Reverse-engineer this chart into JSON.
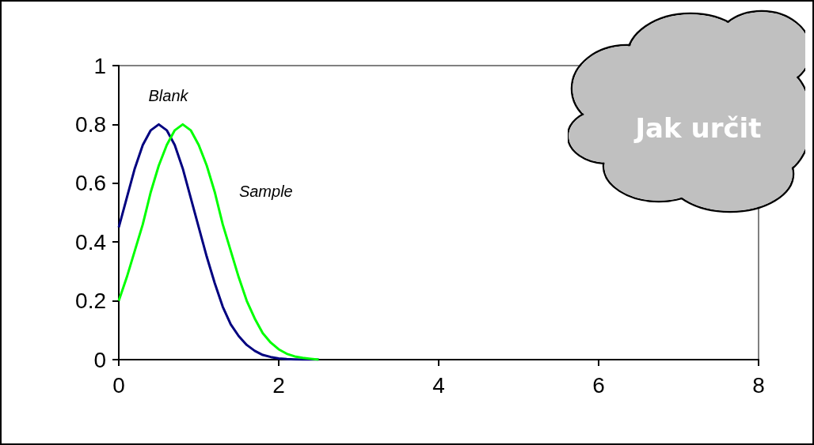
{
  "chart_data": {
    "type": "line",
    "marker": "none",
    "x": [
      0,
      0.1,
      0.2,
      0.3,
      0.4,
      0.5,
      0.6,
      0.7,
      0.8,
      0.9,
      1,
      1.1,
      1.2,
      1.3,
      1.4,
      1.5,
      1.6,
      1.7,
      1.8,
      1.9,
      2,
      2.1,
      2.2,
      2.3,
      2.4,
      2.5
    ],
    "series": [
      {
        "name": "Blank",
        "color": "#000080",
        "values": [
          0.45,
          0.55,
          0.65,
          0.73,
          0.78,
          0.8,
          0.78,
          0.73,
          0.65,
          0.55,
          0.45,
          0.35,
          0.26,
          0.18,
          0.12,
          0.08,
          0.05,
          0.03,
          0.016,
          0.009,
          0.004,
          0.002,
          0.001,
          0,
          0,
          0
        ]
      },
      {
        "name": "Sample",
        "color": "#00ff00",
        "values": [
          0.2,
          0.28,
          0.37,
          0.46,
          0.57,
          0.66,
          0.73,
          0.78,
          0.8,
          0.78,
          0.73,
          0.66,
          0.57,
          0.46,
          0.37,
          0.28,
          0.2,
          0.14,
          0.09,
          0.058,
          0.035,
          0.02,
          0.011,
          0.006,
          0.003,
          0
        ]
      }
    ],
    "xlim": [
      0,
      8
    ],
    "xticks": [
      0,
      2,
      4,
      6,
      8
    ],
    "ylim": [
      0,
      1
    ],
    "yticks": [
      0,
      0.2,
      0.4,
      0.6,
      0.8,
      1
    ],
    "annotations": [
      "Jak určit"
    ]
  }
}
